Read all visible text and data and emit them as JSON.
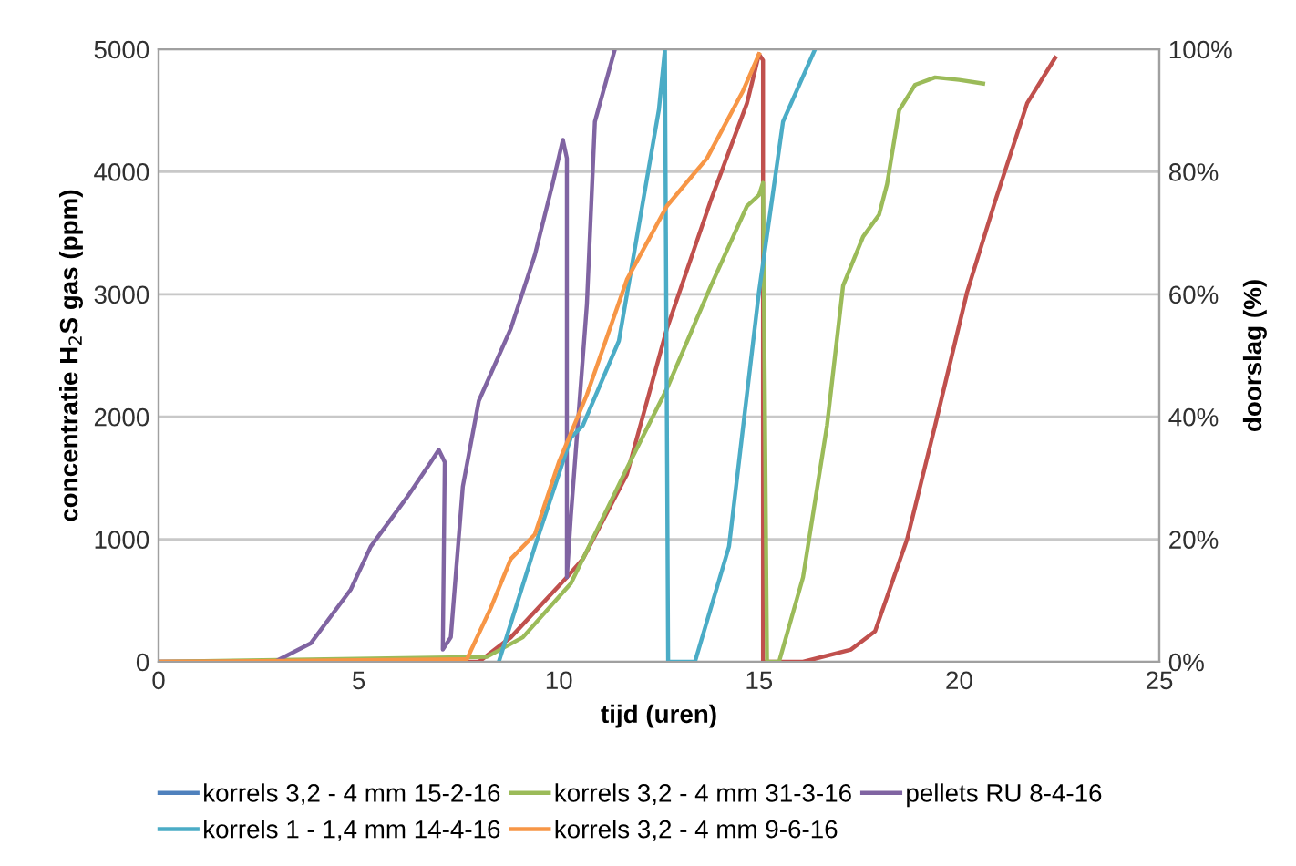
{
  "chart_data": {
    "type": "line",
    "xlabel": "tijd (uren)",
    "ylabel": "concentratie H$_{2}$S gas (ppm)",
    "y2label": "doorslag (%)",
    "xlim": [
      0,
      25
    ],
    "xticks": [
      0,
      5,
      10,
      15,
      20,
      25
    ],
    "ylim": [
      0,
      5000
    ],
    "yticks": [
      0,
      1000,
      2000,
      3000,
      4000,
      5000
    ],
    "y2lim": [
      0,
      100
    ],
    "y2ticks": [
      {
        "value": 0,
        "label": "0%"
      },
      {
        "value": 20,
        "label": "20%"
      },
      {
        "value": 40,
        "label": "40%"
      },
      {
        "value": 60,
        "label": "60%"
      },
      {
        "value": 80,
        "label": "80%"
      },
      {
        "value": 100,
        "label": "100%"
      }
    ],
    "grid": "y",
    "legend": "bottom",
    "marker": "none",
    "line_style": "solid",
    "series": [
      {
        "name": "korrels 3,2 - 4 mm 15-2-16",
        "color": "#4f81bd"
      },
      {
        "color": "#c0504d",
        "x": [
          0,
          8.0,
          8.8,
          10.2,
          10.6,
          11.7,
          12.7,
          13.8,
          14.7,
          15.0,
          15.1,
          15.1,
          16.1,
          17.3,
          17.9,
          18.7,
          19.4,
          20.2,
          20.9,
          21.7,
          22.4
        ],
        "values": [
          0,
          0,
          200,
          690,
          840,
          1530,
          2720,
          3770,
          4560,
          4960,
          4910,
          0,
          0,
          100,
          250,
          1000,
          1930,
          3020,
          3760,
          4560,
          4930
        ]
      },
      {
        "name": "korrels 3,2 - 4 mm 31-3-16",
        "color": "#9bbb59",
        "x": [
          0,
          8.2,
          9.1,
          10.3,
          10.6,
          11.7,
          12.7,
          13.8,
          14.7,
          15.0,
          15.1,
          15.2,
          15.5,
          16.1,
          16.7,
          17.1,
          17.6,
          18.0,
          18.2,
          18.5,
          18.9,
          19.4,
          20.0,
          20.6
        ],
        "values": [
          0,
          40,
          200,
          640,
          840,
          1580,
          2230,
          3070,
          3720,
          3810,
          3910,
          0,
          0,
          690,
          1930,
          3070,
          3470,
          3650,
          3900,
          4500,
          4710,
          4770,
          4750,
          4720
        ]
      },
      {
        "name": "pellets RU 8-4-16",
        "color": "#8064a2",
        "x": [
          0,
          2.9,
          3.8,
          4.8,
          5.3,
          6.2,
          6.8,
          7.0,
          7.15,
          7.1,
          7.3,
          7.6,
          8.0,
          8.8,
          9.4,
          9.85,
          10.1,
          10.2,
          10.2,
          10.3,
          10.7,
          10.9,
          11.4
        ],
        "values": [
          0,
          0,
          150,
          590,
          940,
          1340,
          1630,
          1730,
          1630,
          100,
          200,
          1430,
          2130,
          2720,
          3320,
          3910,
          4260,
          4110,
          690,
          1190,
          2920,
          4410,
          5000
        ]
      },
      {
        "name": "korrels 1 - 1,4 mm 14-4-16",
        "color": "#4bacc6",
        "x": [
          8.5,
          9.4,
          10.3,
          10.6,
          11.5,
          12.5,
          12.65,
          12.73,
          13.4,
          14.25,
          15.0,
          15.6,
          16.4
        ],
        "values": [
          0,
          940,
          1830,
          1930,
          2620,
          4510,
          5000,
          0,
          0,
          940,
          3020,
          4410,
          5000
        ]
      },
      {
        "name": "korrels 3,2 - 4 mm 9-6-16",
        "color": "#f79646",
        "x": [
          0,
          7.7,
          8.3,
          8.8,
          9.4,
          10.0,
          10.7,
          11.7,
          12.7,
          13.7,
          14.6,
          15.0
        ],
        "values": [
          0,
          20,
          440,
          840,
          1040,
          1630,
          2180,
          3120,
          3720,
          4110,
          4660,
          4960
        ]
      }
    ]
  }
}
